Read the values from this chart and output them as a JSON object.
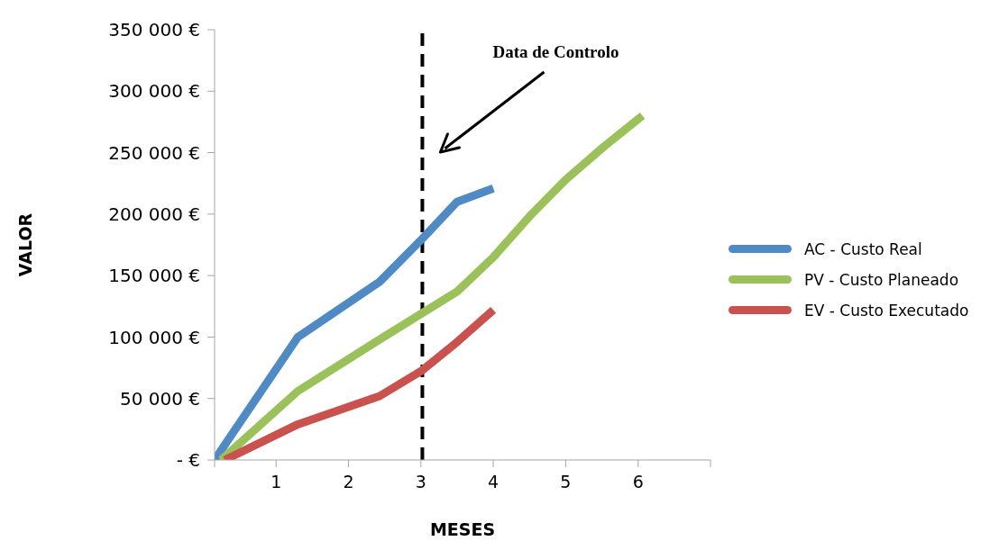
{
  "chart_data": {
    "type": "line",
    "xlabel": "MESES",
    "ylabel": "VALOR",
    "series": [
      {
        "name": "AC - Custo Real",
        "color": "#4f8ac5",
        "x": [
          0.15,
          1.3,
          2.43,
          3.02,
          3.5,
          4.0
        ],
        "values": [
          0,
          100000,
          145000,
          180000,
          210000,
          221000
        ]
      },
      {
        "name": "PV - Custo Planeado",
        "color": "#9bc15a",
        "x": [
          0.24,
          1.3,
          2.43,
          3.5,
          4.0,
          4.53,
          5.0,
          5.53,
          6.06
        ],
        "values": [
          0,
          56000,
          98000,
          137000,
          165000,
          200000,
          228000,
          255000,
          280000
        ]
      },
      {
        "name": "EV - Custo Executado",
        "color": "#c9524f",
        "x": [
          0.29,
          1.3,
          2.43,
          3.02,
          3.5,
          4.0
        ],
        "values": [
          0,
          29000,
          52000,
          73000,
          96000,
          122000
        ]
      }
    ],
    "xlim": [
      0.15,
      7
    ],
    "xticks": [
      {
        "value": 0.15,
        "label": null
      },
      1,
      2,
      3,
      4,
      5,
      6,
      {
        "value": 7,
        "label": null
      }
    ],
    "ylim": [
      0,
      350000
    ],
    "yticks": [
      {
        "value": 0,
        "label": "- €"
      },
      {
        "value": 50000,
        "label": "50 000 €"
      },
      {
        "value": 100000,
        "label": "100 000 €"
      },
      {
        "value": 150000,
        "label": "150 000 €"
      },
      {
        "value": 200000,
        "label": "200 000 €"
      },
      {
        "value": 250000,
        "label": "250 000 €"
      },
      {
        "value": 300000,
        "label": "300 000 €"
      },
      {
        "value": 350000,
        "label": "350 000 €"
      }
    ],
    "ref_lines": [
      {
        "axis": "x",
        "value": 3.02,
        "color": "#000000",
        "line_style": "dashed"
      }
    ],
    "annotations": [
      "Data de Controlo"
    ],
    "grid": false,
    "legend": "right",
    "marker": "none",
    "line_style": "solid"
  }
}
